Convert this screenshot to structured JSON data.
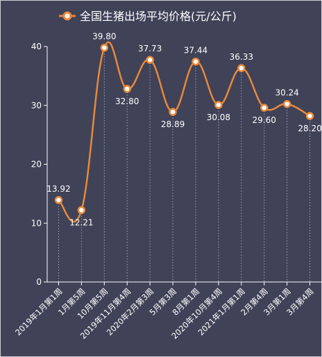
{
  "chart_data": {
    "type": "line",
    "smooth": true,
    "legend_position": "top",
    "grid": false,
    "categories": [
      "2019年1月第1周",
      "1月第5周",
      "10月第5周",
      "2019年11月第4周",
      "2020年2月第3周",
      "5月第3周",
      "8月第1周",
      "2020年10月第4周",
      "2021年1月第1周",
      "2月第4周",
      "3月第1周",
      "3月第4周"
    ],
    "series": [
      {
        "name": "全国生猪出场平均价格(元/公斤)",
        "values": [
          13.92,
          12.21,
          39.8,
          32.8,
          37.73,
          28.89,
          37.44,
          30.08,
          36.33,
          29.6,
          30.24,
          28.2
        ],
        "labels": [
          "13.92",
          "12.21",
          "39.80",
          "32.80",
          "37.73",
          "28.89",
          "37.44",
          "30.08",
          "36.33",
          "29.60",
          "30.24",
          "28.20"
        ],
        "label_side": [
          "above",
          "below",
          "above",
          "below",
          "above",
          "below",
          "above",
          "below",
          "above",
          "below",
          "above",
          "below"
        ]
      }
    ],
    "ylim": [
      0,
      40
    ],
    "yticks": [
      "0",
      "10",
      "20",
      "30",
      "40"
    ],
    "xlabel": "",
    "ylabel": "",
    "colors": {
      "background": "#404258",
      "line": "#e8893a",
      "marker_fill": "#ffffff",
      "axis": "#ffffff",
      "guide": "#8a8da3",
      "text": "#ffffff"
    }
  }
}
